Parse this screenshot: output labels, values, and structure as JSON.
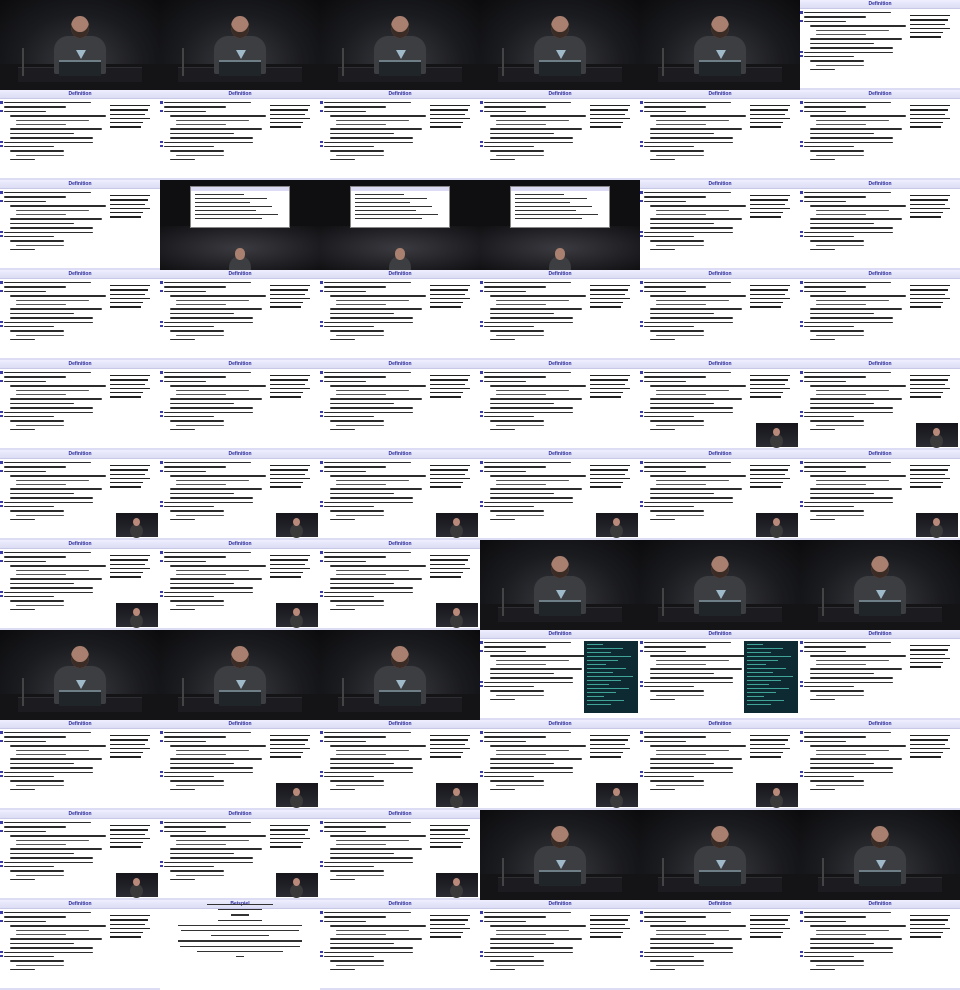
{
  "slide_title": "Definition",
  "example_title": "Beispiel",
  "pattern": [
    "CCCCCS",
    "SSSSSS",
    "SMMMSS",
    "SSSSSS",
    "SSSSPP",
    "PPPPPP",
    "PPPCCC",
    "CCCTTS",
    "SPPPPS",
    "PPPCCC",
    "SXSSSS"
  ]
}
